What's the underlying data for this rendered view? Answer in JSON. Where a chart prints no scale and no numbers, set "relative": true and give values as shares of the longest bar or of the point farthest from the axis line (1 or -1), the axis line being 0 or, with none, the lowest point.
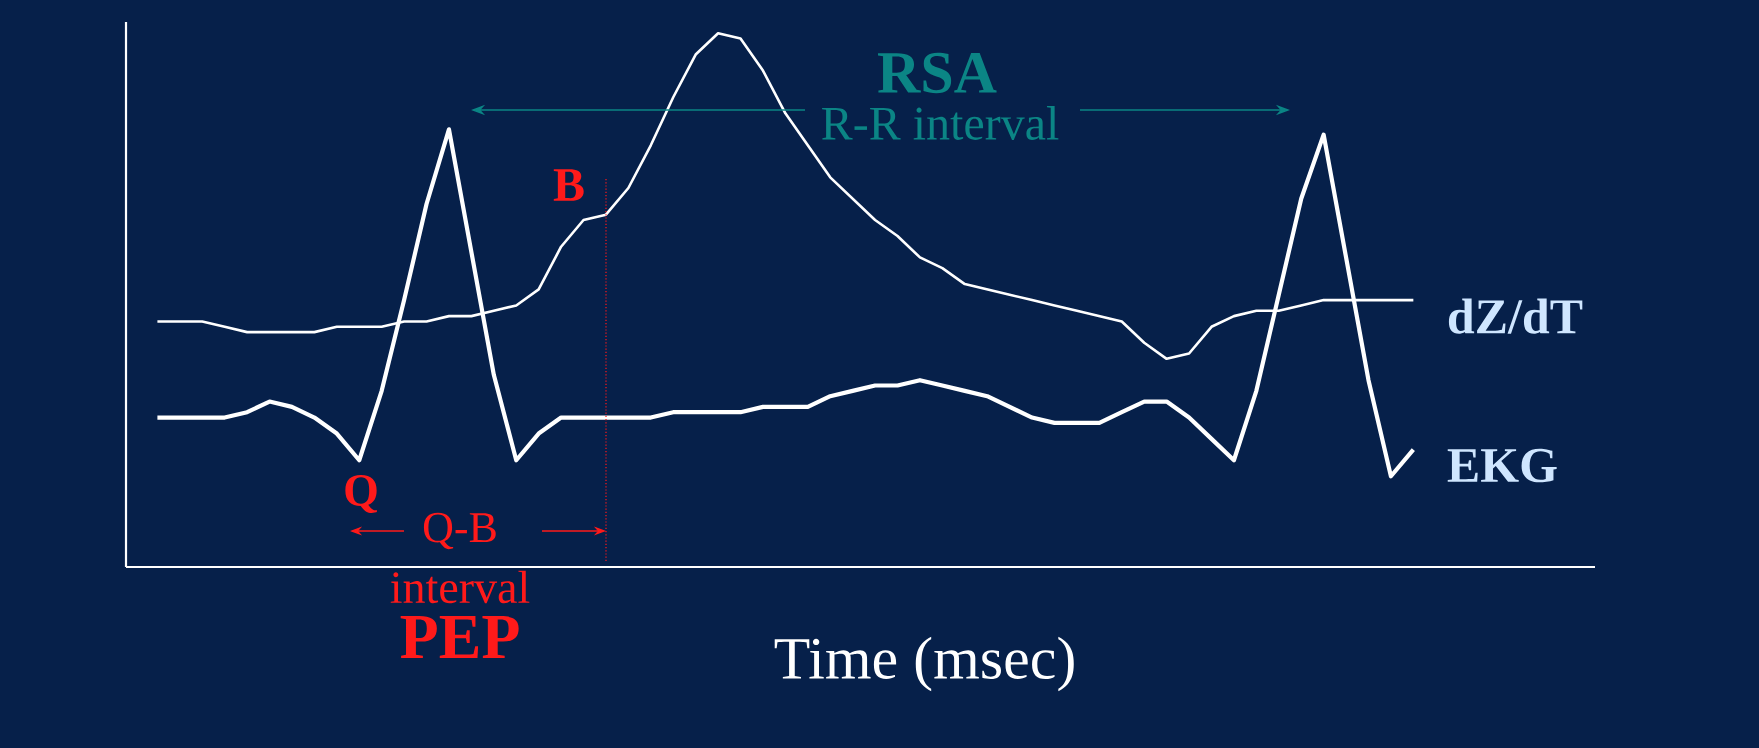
{
  "chart_data": {
    "type": "line",
    "relative": true,
    "xlabel": "Time (msec)",
    "categories": [
      null,
      null,
      null,
      null,
      null,
      null,
      null,
      null,
      null,
      null,
      null,
      null,
      null,
      null,
      null,
      null,
      null,
      null,
      null,
      null,
      null,
      null,
      null,
      null,
      null,
      null,
      null,
      null,
      null,
      null,
      null,
      null,
      null,
      null,
      null,
      null,
      null,
      null,
      null,
      null,
      null,
      null,
      null,
      null,
      null,
      null,
      null,
      null,
      null,
      null,
      null,
      null,
      null,
      null,
      null,
      null,
      null,
      null,
      null,
      null,
      null,
      null,
      null,
      null,
      null,
      null
    ],
    "series": [
      {
        "name": "dZ/dT",
        "color": "#ffffff",
        "values": [
          null,
          0.46,
          0.46,
          0.46,
          0.45,
          0.44,
          0.44,
          0.44,
          0.44,
          0.45,
          0.45,
          0.45,
          0.46,
          0.46,
          0.47,
          0.47,
          0.48,
          0.49,
          0.52,
          0.6,
          0.65,
          0.66,
          0.71,
          0.79,
          0.88,
          0.96,
          1,
          0.99,
          0.93,
          0.85,
          0.79,
          0.73,
          0.69,
          0.65,
          0.62,
          0.58,
          0.56,
          0.53,
          0.52,
          0.51,
          0.5,
          0.49,
          0.48,
          0.47,
          0.46,
          0.42,
          0.39,
          0.4,
          0.45,
          0.47,
          0.48,
          0.48,
          0.49,
          0.5,
          0.5,
          0.5,
          0.5,
          0.5,
          null,
          null,
          null,
          null,
          null,
          null,
          null,
          null
        ]
      },
      {
        "name": "EKG",
        "color": "#ffffff",
        "values": [
          null,
          0.28,
          0.28,
          0.28,
          0.28,
          0.29,
          0.31,
          0.3,
          0.28,
          0.25,
          0.2,
          0.33,
          0.5,
          0.68,
          0.82,
          0.59,
          0.36,
          0.2,
          0.25,
          0.28,
          0.28,
          0.28,
          0.28,
          0.28,
          0.29,
          0.29,
          0.29,
          0.29,
          0.3,
          0.3,
          0.3,
          0.32,
          0.33,
          0.34,
          0.34,
          0.35,
          0.34,
          0.33,
          0.32,
          0.3,
          0.28,
          0.27,
          0.27,
          0.27,
          0.29,
          0.31,
          0.31,
          0.28,
          0.24,
          0.2,
          0.33,
          0.51,
          0.69,
          0.81,
          0.58,
          0.35,
          0.17,
          0.22,
          null,
          null,
          null,
          null,
          null,
          null,
          null,
          null
        ]
      }
    ],
    "annotations": [
      "RSA",
      "R-R interval",
      "B",
      "Q",
      "Q-B",
      "interval",
      "PEP"
    ]
  }
}
